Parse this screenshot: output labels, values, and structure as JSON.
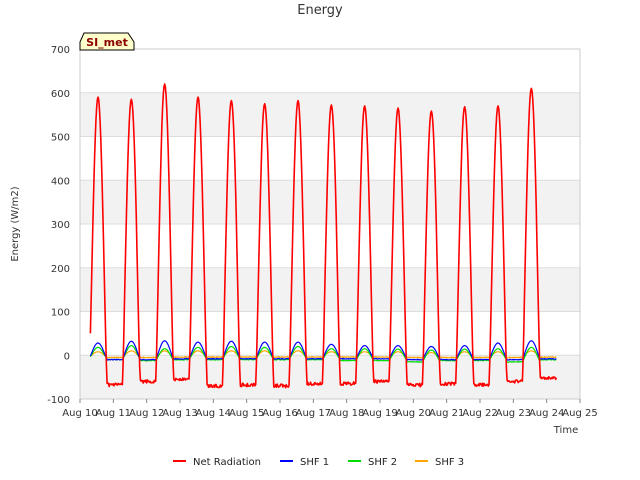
{
  "chart_data": {
    "type": "line",
    "title": "Energy",
    "xlabel": "Time",
    "ylabel": "Energy (W/m2)",
    "site_label": "SI_met",
    "x_domain_days": [
      10,
      25
    ],
    "ylim": [
      -100,
      700
    ],
    "y_ticks": [
      -100,
      0,
      100,
      200,
      300,
      400,
      500,
      600,
      700
    ],
    "x_ticks": [
      {
        "day": 10,
        "label": "Aug 10"
      },
      {
        "day": 11,
        "label": "Aug 11"
      },
      {
        "day": 12,
        "label": "Aug 12"
      },
      {
        "day": 13,
        "label": "Aug 13"
      },
      {
        "day": 14,
        "label": "Aug 14"
      },
      {
        "day": 15,
        "label": "Aug 15"
      },
      {
        "day": 16,
        "label": "Aug 16"
      },
      {
        "day": 17,
        "label": "Aug 17"
      },
      {
        "day": 18,
        "label": "Aug 18"
      },
      {
        "day": 19,
        "label": "Aug 19"
      },
      {
        "day": 20,
        "label": "Aug 20"
      },
      {
        "day": 21,
        "label": "Aug 21"
      },
      {
        "day": 22,
        "label": "Aug 22"
      },
      {
        "day": 23,
        "label": "Aug 23"
      },
      {
        "day": 24,
        "label": "Aug 24"
      },
      {
        "day": 25,
        "label": "Aug 25"
      }
    ],
    "series_info": {
      "start_day": 10.3,
      "days": [
        10,
        11,
        12,
        13,
        14,
        15,
        16,
        17,
        18,
        19,
        20,
        21,
        22,
        23,
        24
      ],
      "last_day_end": 24.3
    },
    "series": [
      {
        "name": "Net Radiation",
        "color": "#ff0000",
        "daily_peak": [
          590,
          585,
          620,
          590,
          582,
          575,
          582,
          572,
          570,
          565,
          558,
          568,
          570,
          610
        ],
        "night_value": [
          -62,
          -68,
          -60,
          -55,
          -70,
          -68,
          -70,
          -65,
          -65,
          -60,
          -68,
          -65,
          -68,
          -60,
          -52
        ]
      },
      {
        "name": "SHF 1",
        "color": "#0000ff",
        "daily_peak": [
          28,
          32,
          33,
          30,
          32,
          30,
          30,
          25,
          22,
          22,
          20,
          22,
          28,
          33
        ],
        "night_value": [
          -8,
          -10,
          -10,
          -8,
          -8,
          -8,
          -8,
          -8,
          -8,
          -8,
          -10,
          -10,
          -10,
          -10,
          -8
        ]
      },
      {
        "name": "SHF 2",
        "color": "#00dd00",
        "daily_peak": [
          18,
          22,
          15,
          18,
          20,
          18,
          20,
          15,
          15,
          14,
          12,
          14,
          15,
          18
        ],
        "night_value": [
          -8,
          -10,
          -12,
          -10,
          -10,
          -10,
          -10,
          -10,
          -12,
          -12,
          -15,
          -12,
          -12,
          -15,
          -10
        ]
      },
      {
        "name": "SHF 3",
        "color": "#ffa500",
        "daily_peak": [
          8,
          10,
          10,
          10,
          10,
          10,
          10,
          8,
          8,
          8,
          6,
          8,
          8,
          10
        ],
        "night_value": [
          -4,
          -5,
          -5,
          -4,
          -4,
          -4,
          -4,
          -4,
          -4,
          -4,
          -5,
          -5,
          -5,
          -5,
          -4
        ]
      }
    ],
    "legend": [
      "Net Radiation",
      "SHF 1",
      "SHF 2",
      "SHF 3"
    ],
    "legend_placement": "bottom-center",
    "grid": true
  }
}
